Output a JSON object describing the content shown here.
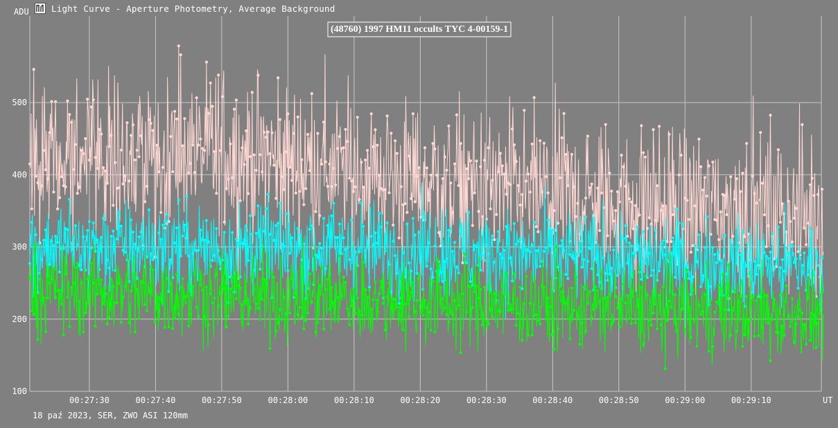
{
  "window": {
    "title": "Light Curve - Aperture Photometry, Average Background",
    "footer": "18 paź 2023, SER, ZWO ASI 120mm"
  },
  "colors": {
    "background": "#808080",
    "grid": "#c8c8c8",
    "target": "#ffd8d4",
    "comparison": "#00ffff",
    "background_series": "#00ff00"
  },
  "chart_data": {
    "type": "line",
    "title": "(48760) 1997 HM11 occults TYC 4-00159-1",
    "xlabel": "UT",
    "ylabel": "ADU",
    "ylim": [
      100,
      620
    ],
    "yticks": [
      100,
      200,
      300,
      400,
      500
    ],
    "xlim": [
      "00:27:21.0",
      "00:29:20.6"
    ],
    "xticks": [
      "00:27:30",
      "00:27:40",
      "00:27:50",
      "00:28:00",
      "00:28:10",
      "00:28:20",
      "00:28:30",
      "00:28:40",
      "00:28:50",
      "00:29:00",
      "00:29:10"
    ],
    "grid": true,
    "markers": true,
    "samples": 1200,
    "sample_interval_s": 0.1,
    "series": [
      {
        "color": "#ffd8d4",
        "trend": [
          [
            0,
            420
          ],
          [
            0.25,
            430
          ],
          [
            0.5,
            390
          ],
          [
            0.75,
            360
          ],
          [
            1,
            345
          ]
        ],
        "scatter": 55
      },
      {
        "color": "#00ffff",
        "trend": [
          [
            0,
            300
          ],
          [
            0.5,
            295
          ],
          [
            1,
            270
          ]
        ],
        "scatter": 32
      },
      {
        "color": "#00ff00",
        "trend": [
          [
            0,
            240
          ],
          [
            0.5,
            225
          ],
          [
            1,
            205
          ]
        ],
        "scatter": 30
      }
    ]
  }
}
